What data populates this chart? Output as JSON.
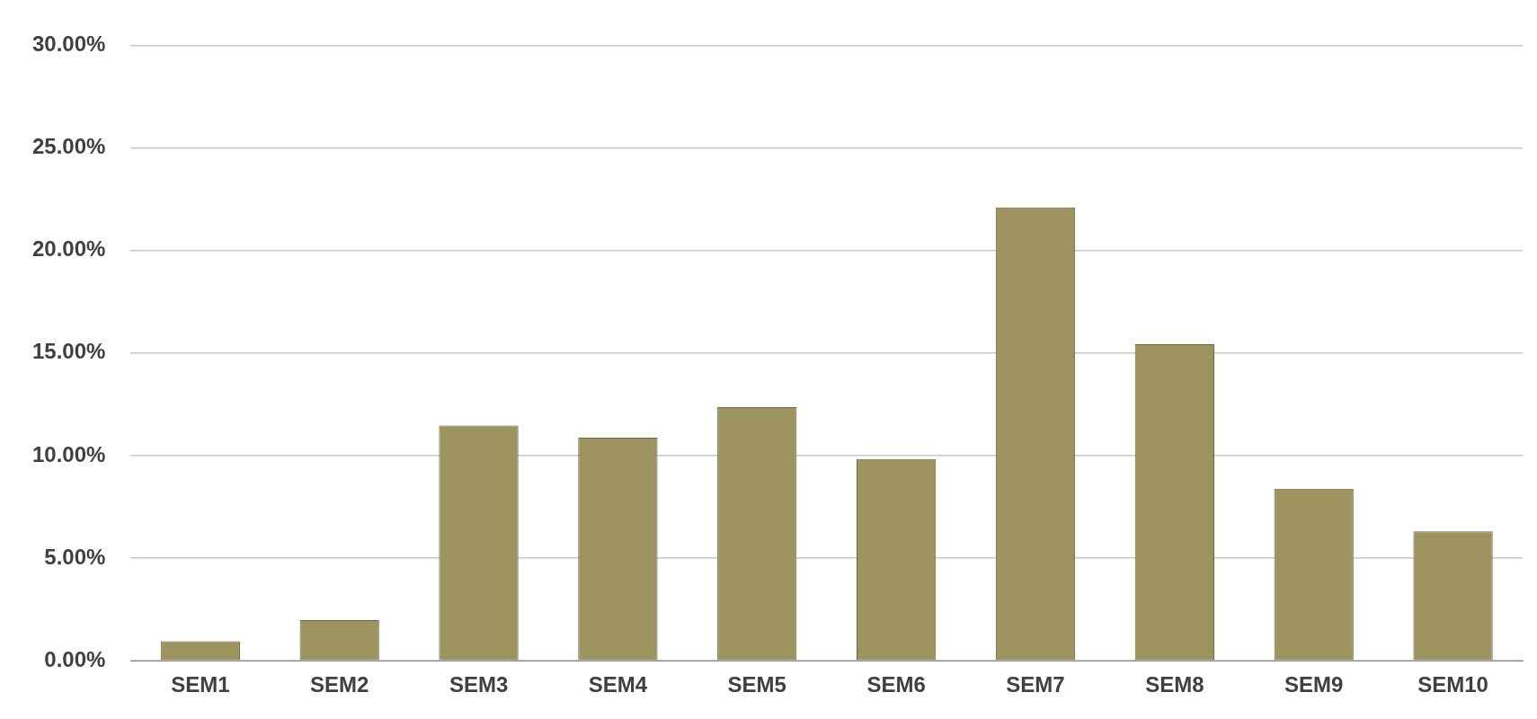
{
  "chart_data": {
    "type": "bar",
    "categories": [
      "SEM1",
      "SEM2",
      "SEM3",
      "SEM4",
      "SEM5",
      "SEM6",
      "SEM7",
      "SEM8",
      "SEM9",
      "SEM10"
    ],
    "values": [
      0.95,
      1.98,
      11.46,
      10.87,
      12.36,
      9.83,
      22.1,
      15.43,
      8.39,
      6.31
    ],
    "color": "#9e9460",
    "ylim": [
      0,
      30
    ],
    "yticks": [
      {
        "value": 0,
        "label": "0.00%"
      },
      {
        "value": 5,
        "label": "5.00%"
      },
      {
        "value": 10,
        "label": "10.00%"
      },
      {
        "value": 15,
        "label": "15.00%"
      },
      {
        "value": 20,
        "label": "20.00%"
      },
      {
        "value": 25,
        "label": "25.00%"
      },
      {
        "value": 30,
        "label": "30.00%"
      }
    ],
    "grid": "y",
    "legend": false
  }
}
